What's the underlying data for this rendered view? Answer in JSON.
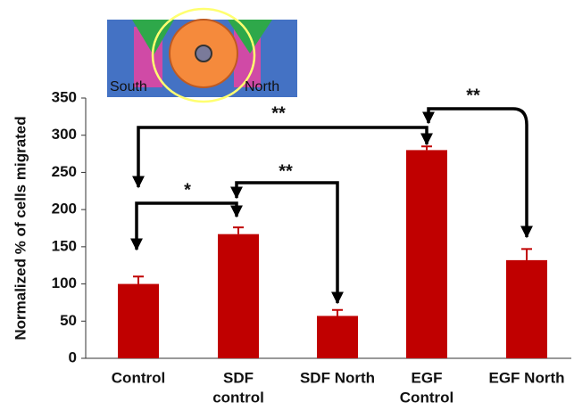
{
  "chart_data": {
    "type": "bar",
    "ylabel": "Normalized % of cells migrated",
    "categories": [
      "Control",
      [
        "SDF",
        "control"
      ],
      "SDF North",
      [
        "EGF",
        "Control"
      ],
      "EGF North"
    ],
    "values": [
      100,
      167,
      57,
      280,
      132
    ],
    "errors": [
      10,
      9,
      8,
      5,
      15
    ],
    "color": "#c00000",
    "ylim": [
      0,
      350
    ],
    "yticks": [
      0,
      50,
      100,
      150,
      200,
      250,
      300,
      350
    ],
    "annotations": [
      "**",
      "*",
      "**",
      "**"
    ],
    "inset": {
      "labels": [
        "South",
        "North"
      ]
    }
  }
}
